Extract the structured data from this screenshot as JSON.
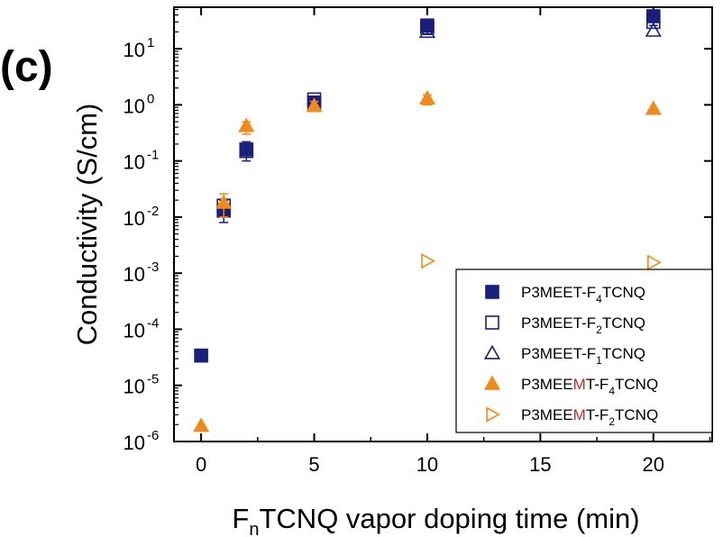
{
  "panel_label": "(c)",
  "colors": {
    "navy": "#1a1f7a",
    "orange": "#f28a1b",
    "highlight": "#e0201b"
  },
  "chart_data": {
    "type": "scatter",
    "xlabel_main": "F",
    "xlabel_sub": "n",
    "xlabel_rest": "TCNQ vapor doping time (min)",
    "ylabel": "Conductivity (S/cm)",
    "xlim": [
      -1.2,
      22.6
    ],
    "ylim": [
      1e-06,
      55
    ],
    "yscale": "log",
    "x_ticks": [
      0,
      5,
      10,
      15,
      20
    ],
    "y_ticks": [
      {
        "value": 1e-06,
        "base": "10",
        "exp": "-6"
      },
      {
        "value": 1e-05,
        "base": "10",
        "exp": "-5"
      },
      {
        "value": 0.0001,
        "base": "10",
        "exp": "-4"
      },
      {
        "value": 0.001,
        "base": "10",
        "exp": "-3"
      },
      {
        "value": 0.01,
        "base": "10",
        "exp": "-2"
      },
      {
        "value": 0.1,
        "base": "10",
        "exp": "-1"
      },
      {
        "value": 1,
        "base": "10",
        "exp": "0"
      },
      {
        "value": 10,
        "base": "10",
        "exp": "1"
      }
    ],
    "legend_position": "bottom-right",
    "series": [
      {
        "key": "s1",
        "marker": "square-filled",
        "color": "#1a1f7a",
        "legend": {
          "pre": "P3MEET-F",
          "sub": "4",
          "post": "TCNQ",
          "highlight": ""
        },
        "points": [
          {
            "x": 0,
            "y": 3.4e-05
          },
          {
            "x": 1,
            "y": 0.013,
            "lo": 0.008,
            "hi": 0.02
          },
          {
            "x": 2,
            "y": 0.16,
            "lo": 0.1,
            "hi": 0.22
          },
          {
            "x": 5,
            "y": 1.1
          },
          {
            "x": 10,
            "y": 26,
            "lo": 18,
            "hi": 33
          },
          {
            "x": 20,
            "y": 38,
            "lo": 26,
            "hi": 46
          }
        ]
      },
      {
        "key": "s2",
        "marker": "square-open",
        "color": "#1a1f7a",
        "legend": {
          "pre": "P3MEET-F",
          "sub": "2",
          "post": "TCNQ",
          "highlight": ""
        },
        "points": [
          {
            "x": 1,
            "y": 0.016
          },
          {
            "x": 2,
            "y": 0.15
          },
          {
            "x": 5,
            "y": 1.25
          },
          {
            "x": 10,
            "y": 24
          },
          {
            "x": 20,
            "y": 30
          }
        ]
      },
      {
        "key": "s3",
        "marker": "triangle-open",
        "color": "#1a1f7a",
        "legend": {
          "pre": "P3MEET-F",
          "sub": "1",
          "post": "TCNQ",
          "highlight": ""
        },
        "points": [
          {
            "x": 10,
            "y": 20
          },
          {
            "x": 20,
            "y": 21
          }
        ]
      },
      {
        "key": "s4",
        "marker": "triangle-filled",
        "color": "#f28a1b",
        "legend": {
          "pre": "P3MEE",
          "highlight": "M",
          "after": "T-F",
          "sub": "4",
          "post": "TCNQ"
        },
        "points": [
          {
            "x": 0,
            "y": 1.9e-06
          },
          {
            "x": 1,
            "y": 0.018,
            "lo": 0.01,
            "hi": 0.026
          },
          {
            "x": 2,
            "y": 0.42,
            "lo": 0.3,
            "hi": 0.5
          },
          {
            "x": 5,
            "y": 0.95,
            "lo": 0.8,
            "hi": 1.15
          },
          {
            "x": 10,
            "y": 1.3,
            "lo": 1.0,
            "hi": 1.5
          },
          {
            "x": 20,
            "y": 0.85
          }
        ]
      },
      {
        "key": "s5",
        "marker": "triangle-right-open",
        "color": "#f28a1b",
        "legend": {
          "pre": "P3MEE",
          "highlight": "M",
          "after": "T-F",
          "sub": "2",
          "post": "TCNQ"
        },
        "points": [
          {
            "x": 10,
            "y": 0.00165
          },
          {
            "x": 20,
            "y": 0.00155
          }
        ]
      }
    ]
  }
}
